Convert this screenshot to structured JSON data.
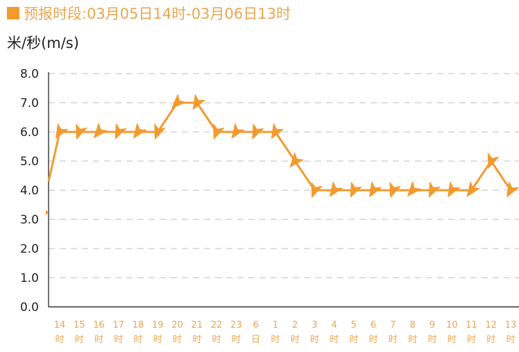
{
  "header": {
    "title": "预报时段:03月05日14时-03月06日13时",
    "accent_color": "#f39a2e"
  },
  "chart_data": {
    "type": "line",
    "ylabel": "米/秒(m/s)",
    "ylim": [
      0,
      8
    ],
    "yticks": [
      "0.0",
      "1.0",
      "2.0",
      "3.0",
      "4.0",
      "5.0",
      "6.0",
      "7.0",
      "8.0"
    ],
    "categories": [
      [
        "14",
        "时"
      ],
      [
        "15",
        "时"
      ],
      [
        "16",
        "时"
      ],
      [
        "17",
        "时"
      ],
      [
        "18",
        "时"
      ],
      [
        "19",
        "时"
      ],
      [
        "20",
        "时"
      ],
      [
        "21",
        "时"
      ],
      [
        "22",
        "时"
      ],
      [
        "23",
        "时"
      ],
      [
        "6",
        "日"
      ],
      [
        "1",
        "时"
      ],
      [
        "2",
        "时"
      ],
      [
        "3",
        "时"
      ],
      [
        "4",
        "时"
      ],
      [
        "5",
        "时"
      ],
      [
        "6",
        "时"
      ],
      [
        "7",
        "时"
      ],
      [
        "8",
        "时"
      ],
      [
        "9",
        "时"
      ],
      [
        "10",
        "时"
      ],
      [
        "11",
        "时"
      ],
      [
        "12",
        "时"
      ],
      [
        "13",
        "时"
      ]
    ],
    "series": [
      {
        "values": [
          6,
          6,
          6,
          6,
          6,
          6,
          7,
          7,
          6,
          6,
          6,
          6,
          5,
          4,
          4,
          4,
          4,
          4,
          4,
          4,
          4,
          4,
          5,
          4
        ],
        "color": "#f39a2e",
        "marker": "arrow-icon"
      }
    ],
    "grid": true,
    "grid_style": "dashed"
  }
}
